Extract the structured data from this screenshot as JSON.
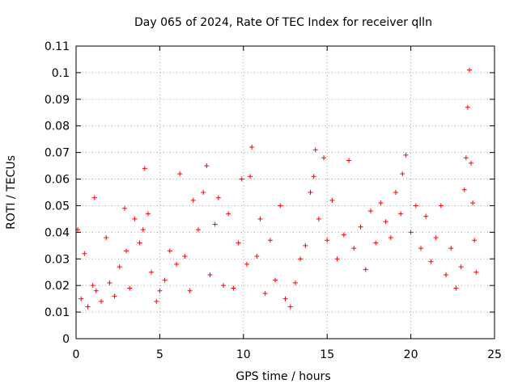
{
  "chart_data": {
    "type": "scatter",
    "title": "Day 065 of 2024, Rate Of TEC Index for receiver qlln",
    "xlabel": "GPS time / hours",
    "ylabel": "ROTI / TECUs",
    "xlim": [
      0,
      25
    ],
    "ylim": [
      0,
      0.11
    ],
    "xticks": [
      0,
      5,
      10,
      15,
      20,
      25
    ],
    "xtick_labels": [
      "0",
      "5",
      "10",
      "15",
      "20",
      "25"
    ],
    "yticks": [
      0,
      0.01,
      0.02,
      0.03,
      0.04,
      0.05,
      0.06,
      0.07,
      0.08,
      0.09,
      0.1,
      0.11
    ],
    "ytick_labels": [
      "0",
      "0.01",
      "0.02",
      "0.03",
      "0.04",
      "0.05",
      "0.06",
      "0.07",
      "0.08",
      "0.09",
      "0.1",
      "0.11"
    ],
    "grid": true,
    "marker": "+",
    "color": "#ff0000",
    "series": [
      {
        "x": [
          0.1,
          0.3,
          0.5,
          0.7,
          1.0,
          1.1,
          1.2,
          1.5,
          1.8,
          2.0,
          2.3,
          2.6,
          2.9,
          3.0,
          3.2,
          3.5,
          3.8,
          4.0,
          4.1,
          4.3,
          4.5,
          4.8,
          5.0,
          5.3,
          5.6,
          6.0,
          6.2,
          6.5,
          6.8,
          7.0,
          7.3,
          7.6,
          7.8,
          8.0,
          8.3,
          8.5,
          8.8,
          9.1,
          9.4,
          9.7,
          9.9,
          10.2,
          10.4,
          10.5,
          10.8,
          11.0,
          11.3,
          11.6,
          11.9,
          12.2,
          12.5,
          12.8,
          13.1,
          13.4,
          13.7,
          14.0,
          14.2,
          14.3,
          14.5,
          14.8,
          15.0,
          15.3,
          15.6,
          16.0,
          16.3,
          16.6,
          17.0,
          17.3,
          17.6,
          17.9,
          18.2,
          18.5,
          18.8,
          19.1,
          19.4,
          19.5,
          19.7,
          20.0,
          20.3,
          20.6,
          20.9,
          21.2,
          21.5,
          21.8,
          22.1,
          22.4,
          22.7,
          23.0,
          23.2,
          23.3,
          23.4,
          23.5,
          23.6,
          23.7,
          23.8,
          23.9
        ],
        "y": [
          0.041,
          0.015,
          0.032,
          0.012,
          0.02,
          0.053,
          0.018,
          0.014,
          0.038,
          0.021,
          0.016,
          0.027,
          0.049,
          0.033,
          0.019,
          0.045,
          0.036,
          0.041,
          0.064,
          0.047,
          0.025,
          0.014,
          0.018,
          0.022,
          0.033,
          0.028,
          0.062,
          0.031,
          0.018,
          0.052,
          0.041,
          0.055,
          0.065,
          0.024,
          0.043,
          0.053,
          0.02,
          0.047,
          0.019,
          0.036,
          0.06,
          0.028,
          0.061,
          0.072,
          0.031,
          0.045,
          0.017,
          0.037,
          0.022,
          0.05,
          0.015,
          0.012,
          0.021,
          0.03,
          0.035,
          0.055,
          0.061,
          0.071,
          0.045,
          0.068,
          0.037,
          0.052,
          0.03,
          0.039,
          0.067,
          0.034,
          0.042,
          0.026,
          0.048,
          0.036,
          0.051,
          0.044,
          0.038,
          0.055,
          0.047,
          0.062,
          0.069,
          0.04,
          0.05,
          0.034,
          0.046,
          0.029,
          0.038,
          0.05,
          0.024,
          0.034,
          0.019,
          0.027,
          0.056,
          0.068,
          0.087,
          0.101,
          0.066,
          0.051,
          0.037,
          0.025
        ]
      }
    ]
  }
}
